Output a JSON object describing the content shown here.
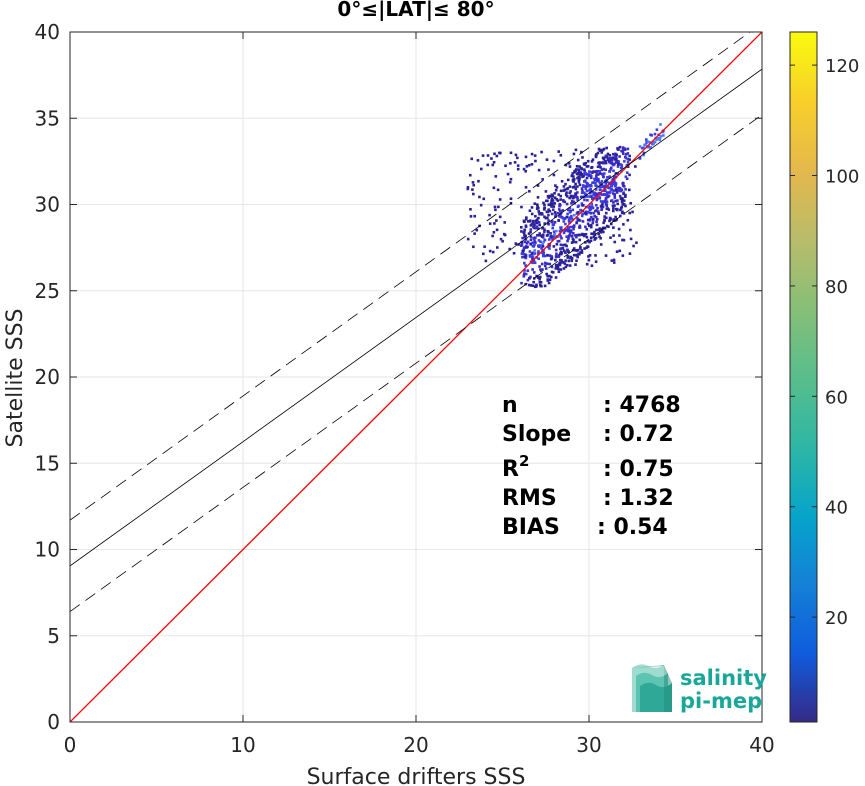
{
  "chart_data": {
    "type": "scatter",
    "title": "0°≤|LAT|≤ 80°",
    "xlabel": "Surface drifters SSS",
    "ylabel": "Satellite SSS",
    "xlim": [
      0,
      40
    ],
    "ylim": [
      0,
      40
    ],
    "xticks": [
      "0",
      "10",
      "20",
      "30",
      "40"
    ],
    "yticks": [
      "0",
      "5",
      "10",
      "15",
      "20",
      "25",
      "30",
      "35",
      "40"
    ],
    "grid": true,
    "colorbar": {
      "range": [
        1,
        126
      ],
      "ticks": [
        "20",
        "40",
        "60",
        "80",
        "100",
        "120"
      ],
      "tick_values": [
        20,
        40,
        60,
        80,
        100,
        120
      ],
      "colormap": "parula"
    },
    "lines": {
      "identity": {
        "slope": 1,
        "intercept": 0,
        "color": "#ff0000"
      },
      "fit": {
        "slope": 0.72,
        "intercept": 9.05,
        "color": "#000000"
      },
      "upper_bound": {
        "slope": 0.72,
        "intercept": 11.7,
        "color": "#000000"
      },
      "lower_bound": {
        "slope": 0.72,
        "intercept": 6.4,
        "color": "#000000"
      }
    },
    "density_cluster": {
      "x_range": [
        22.9,
        34.3
      ],
      "y_range": [
        25.3,
        34.4
      ]
    },
    "stats": [
      {
        "label": "n",
        "value": ": 4768"
      },
      {
        "label": "Slope",
        "value": ": 0.72"
      },
      {
        "label": "R",
        "sup": "2",
        "value": ": 0.75"
      },
      {
        "label": "RMS",
        "value": ": 1.32"
      },
      {
        "label": "BIAS",
        "value": ": 0.54"
      }
    ]
  },
  "logo": {
    "line1": "salinity",
    "line2": "pi-mep"
  }
}
